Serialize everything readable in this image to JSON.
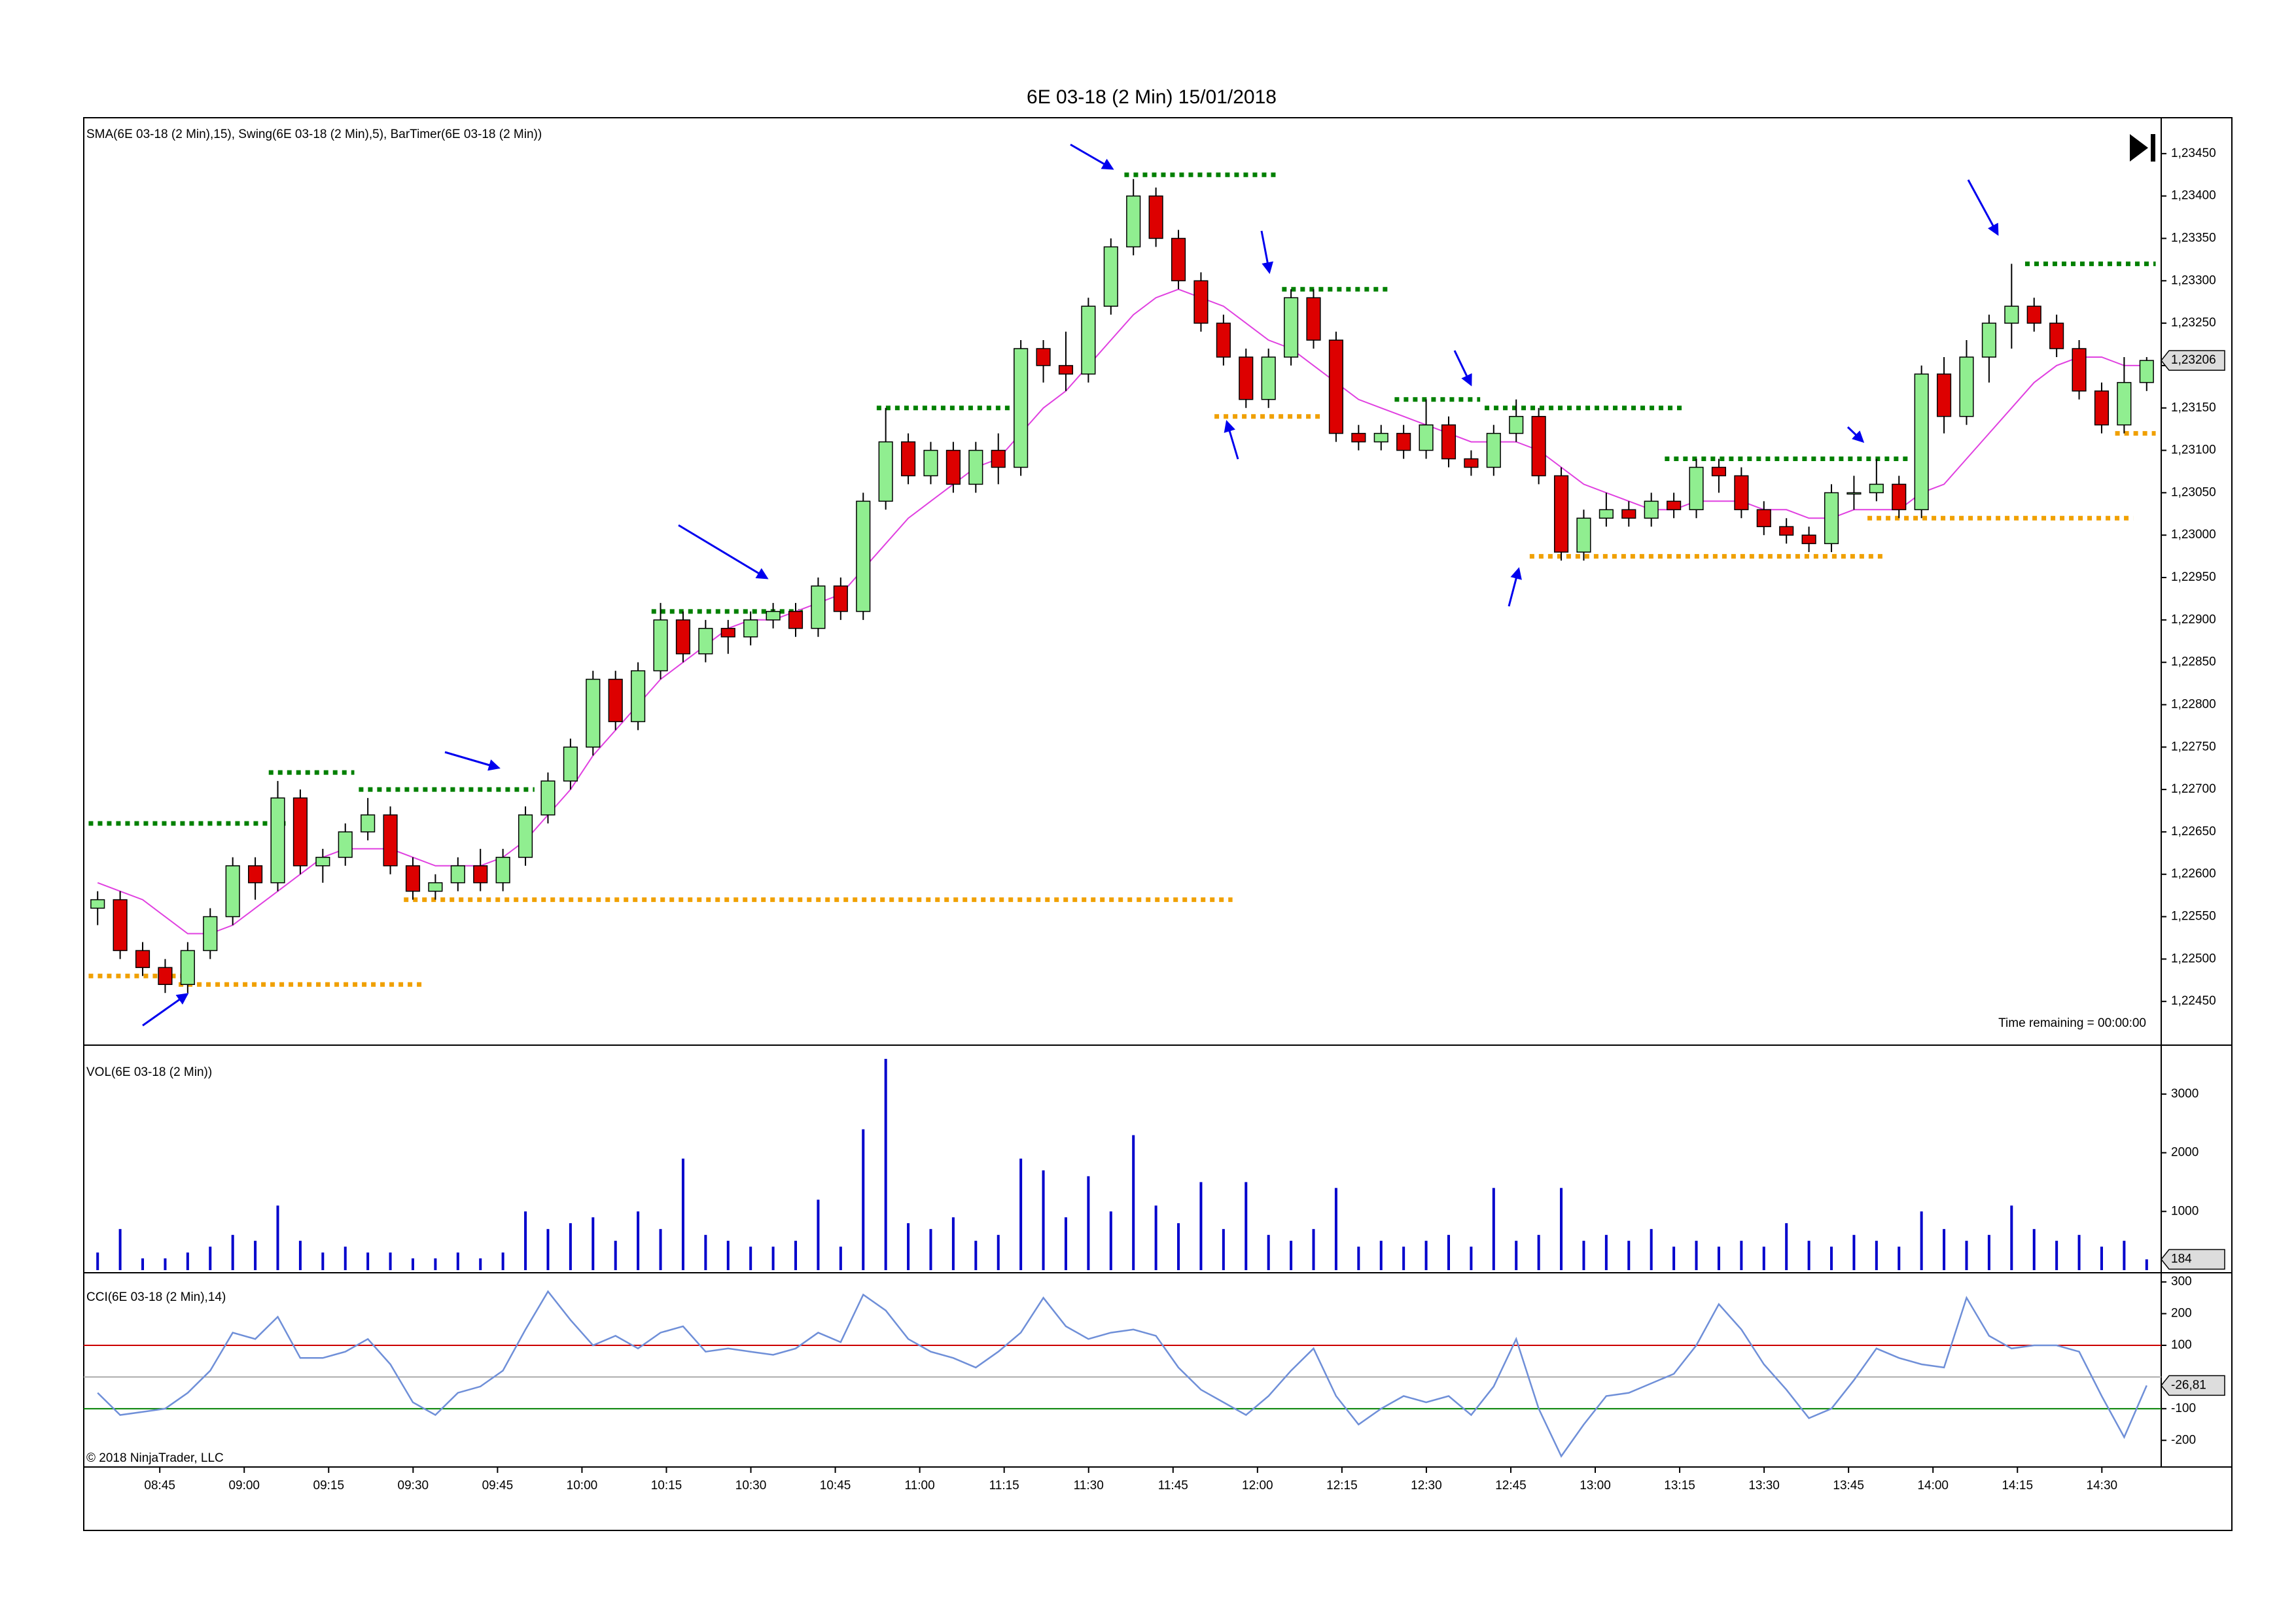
{
  "title": "6E 03-18 (2 Min)  15/01/2018",
  "chart_data": [
    {
      "type": "candlestick",
      "legend_text": "SMA(6E 03-18 (2 Min),15), Swing(6E 03-18 (2 Min),5), BarTimer(6E 03-18 (2 Min))",
      "note": "Time remaining = 00:00:00",
      "up_color": "#90ee90",
      "down_color": "#dd0000",
      "open": [
        1.2256,
        1.2257,
        1.2251,
        1.2249,
        1.2247,
        1.2251,
        1.2255,
        1.2261,
        1.2259,
        1.2269,
        1.2261,
        1.2262,
        1.2265,
        1.2267,
        1.2261,
        1.2258,
        1.2259,
        1.2261,
        1.2259,
        1.2262,
        1.2267,
        1.2271,
        1.2275,
        1.2283,
        1.2278,
        1.2284,
        1.229,
        1.2286,
        1.2289,
        1.2288,
        1.229,
        1.2291,
        1.2289,
        1.2294,
        1.2291,
        1.2304,
        1.2311,
        1.2307,
        1.231,
        1.2306,
        1.231,
        1.2308,
        1.2322,
        1.232,
        1.2319,
        1.2327,
        1.2334,
        1.234,
        1.2335,
        1.233,
        1.2325,
        1.2321,
        1.2316,
        1.2321,
        1.2328,
        1.2323,
        1.2312,
        1.2311,
        1.2312,
        1.231,
        1.2313,
        1.2309,
        1.2308,
        1.2312,
        1.2314,
        1.2307,
        1.2298,
        1.2302,
        1.2303,
        1.2302,
        1.2304,
        1.2303,
        1.2308,
        1.2307,
        1.2303,
        1.2301,
        1.23,
        1.2299,
        1.2305,
        1.2305,
        1.2306,
        1.2303,
        1.2319,
        1.2314,
        1.2321,
        1.2325,
        1.2327,
        1.2325,
        1.2322,
        1.2317,
        1.2313,
        1.2318
      ],
      "high": [
        1.2258,
        1.2258,
        1.2252,
        1.225,
        1.2252,
        1.2256,
        1.2262,
        1.2262,
        1.2271,
        1.227,
        1.2263,
        1.2266,
        1.2269,
        1.2268,
        1.2262,
        1.226,
        1.2262,
        1.2263,
        1.2263,
        1.2268,
        1.2272,
        1.2276,
        1.2284,
        1.2284,
        1.2285,
        1.2292,
        1.2291,
        1.229,
        1.229,
        1.2291,
        1.2292,
        1.2292,
        1.2295,
        1.2295,
        1.2305,
        1.2315,
        1.2312,
        1.2311,
        1.2311,
        1.2311,
        1.2312,
        1.2323,
        1.2323,
        1.2324,
        1.2328,
        1.2335,
        1.2342,
        1.2341,
        1.2336,
        1.2331,
        1.2326,
        1.2322,
        1.2322,
        1.2329,
        1.2329,
        1.2324,
        1.2313,
        1.2313,
        1.2313,
        1.2316,
        1.2314,
        1.231,
        1.2313,
        1.2316,
        1.2315,
        1.2308,
        1.2303,
        1.2305,
        1.2304,
        1.2305,
        1.2305,
        1.2309,
        1.2309,
        1.2308,
        1.2304,
        1.2302,
        1.2301,
        1.2306,
        1.2307,
        1.2309,
        1.2307,
        1.232,
        1.2321,
        1.2323,
        1.2326,
        1.2332,
        1.2328,
        1.2326,
        1.2323,
        1.2318,
        1.2321,
        1.2321
      ],
      "low": [
        1.2254,
        1.225,
        1.2248,
        1.2246,
        1.2246,
        1.225,
        1.2254,
        1.2257,
        1.2258,
        1.226,
        1.2259,
        1.2261,
        1.2264,
        1.226,
        1.2257,
        1.2257,
        1.2258,
        1.2258,
        1.2258,
        1.2261,
        1.2266,
        1.227,
        1.2274,
        1.2277,
        1.2277,
        1.2283,
        1.2285,
        1.2285,
        1.2286,
        1.2287,
        1.2289,
        1.2288,
        1.2288,
        1.229,
        1.229,
        1.2303,
        1.2306,
        1.2306,
        1.2305,
        1.2305,
        1.2306,
        1.2307,
        1.2318,
        1.2317,
        1.2318,
        1.2326,
        1.2333,
        1.2334,
        1.2329,
        1.2324,
        1.232,
        1.2315,
        1.2315,
        1.232,
        1.2322,
        1.2311,
        1.231,
        1.231,
        1.2309,
        1.2309,
        1.2308,
        1.2307,
        1.2307,
        1.2311,
        1.2306,
        1.2297,
        1.2297,
        1.2301,
        1.2301,
        1.2301,
        1.2302,
        1.2302,
        1.2305,
        1.2302,
        1.23,
        1.2299,
        1.2298,
        1.2298,
        1.2303,
        1.2304,
        1.2302,
        1.2302,
        1.2312,
        1.2313,
        1.2318,
        1.2322,
        1.2324,
        1.2321,
        1.2316,
        1.2312,
        1.2312,
        1.2317
      ],
      "close": [
        1.2257,
        1.2251,
        1.2249,
        1.2247,
        1.2251,
        1.2255,
        1.2261,
        1.2259,
        1.2269,
        1.2261,
        1.2262,
        1.2265,
        1.2267,
        1.2261,
        1.2258,
        1.2259,
        1.2261,
        1.2259,
        1.2262,
        1.2267,
        1.2271,
        1.2275,
        1.2283,
        1.2278,
        1.2284,
        1.229,
        1.2286,
        1.2289,
        1.2288,
        1.229,
        1.2291,
        1.2289,
        1.2294,
        1.2291,
        1.2304,
        1.2311,
        1.2307,
        1.231,
        1.2306,
        1.231,
        1.2308,
        1.2322,
        1.232,
        1.2319,
        1.2327,
        1.2334,
        1.234,
        1.2335,
        1.233,
        1.2325,
        1.2321,
        1.2316,
        1.2321,
        1.2328,
        1.2323,
        1.2312,
        1.2311,
        1.2312,
        1.231,
        1.2313,
        1.2309,
        1.2308,
        1.2312,
        1.2314,
        1.2307,
        1.2298,
        1.2302,
        1.2303,
        1.2302,
        1.2304,
        1.2303,
        1.2308,
        1.2307,
        1.2303,
        1.2301,
        1.23,
        1.2299,
        1.2305,
        1.2305,
        1.2306,
        1.2303,
        1.2319,
        1.2314,
        1.2321,
        1.2325,
        1.2327,
        1.2325,
        1.2322,
        1.2317,
        1.2313,
        1.2318,
        1.23206
      ],
      "last_label": "1,23206",
      "sma": {
        "color": "#e040e0",
        "values": [
          1.2259,
          1.2258,
          1.2257,
          1.2255,
          1.2253,
          1.2253,
          1.2254,
          1.2256,
          1.2258,
          1.226,
          1.2262,
          1.2263,
          1.2263,
          1.2263,
          1.2262,
          1.2261,
          1.2261,
          1.2261,
          1.2262,
          1.2264,
          1.2267,
          1.227,
          1.2274,
          1.2277,
          1.228,
          1.2283,
          1.2285,
          1.2287,
          1.2289,
          1.229,
          1.229,
          1.2291,
          1.2292,
          1.2293,
          1.2296,
          1.2299,
          1.2302,
          1.2304,
          1.2306,
          1.2308,
          1.2309,
          1.2312,
          1.2315,
          1.2317,
          1.232,
          1.2323,
          1.2326,
          1.2328,
          1.2329,
          1.2328,
          1.2327,
          1.2325,
          1.2323,
          1.2322,
          1.232,
          1.2318,
          1.2316,
          1.2315,
          1.2314,
          1.2313,
          1.2312,
          1.2311,
          1.2311,
          1.2311,
          1.231,
          1.2308,
          1.2306,
          1.2305,
          1.2304,
          1.2303,
          1.2303,
          1.2304,
          1.2304,
          1.2304,
          1.2303,
          1.2303,
          1.2302,
          1.2302,
          1.2303,
          1.2303,
          1.2303,
          1.2305,
          1.2306,
          1.2309,
          1.2312,
          1.2315,
          1.2318,
          1.232,
          1.2321,
          1.2321,
          1.232,
          1.232
        ]
      },
      "swing_highs": {
        "color": "#008000",
        "lines": [
          {
            "value": 1.2266,
            "from": 0,
            "to": 8
          },
          {
            "value": 1.2272,
            "from": 8,
            "to": 11
          },
          {
            "value": 1.227,
            "from": 12,
            "to": 19
          },
          {
            "value": 1.2291,
            "from": 25,
            "to": 31
          },
          {
            "value": 1.2315,
            "from": 35,
            "to": 41
          },
          {
            "value": 1.23425,
            "from": 46,
            "to": 52
          },
          {
            "value": 1.2329,
            "from": 53,
            "to": 57
          },
          {
            "value": 1.2316,
            "from": 58,
            "to": 61
          },
          {
            "value": 1.2315,
            "from": 62,
            "to": 70
          },
          {
            "value": 1.2309,
            "from": 70,
            "to": 80
          },
          {
            "value": 1.2332,
            "from": 86,
            "to": 91
          }
        ]
      },
      "swing_lows": {
        "color": "#f0a000",
        "lines": [
          {
            "value": 1.2248,
            "from": 0,
            "to": 4
          },
          {
            "value": 1.2247,
            "from": 4,
            "to": 14
          },
          {
            "value": 1.2257,
            "from": 14,
            "to": 50
          },
          {
            "value": 1.2314,
            "from": 50,
            "to": 54
          },
          {
            "value": 1.22975,
            "from": 64,
            "to": 79
          },
          {
            "value": 1.2302,
            "from": 79,
            "to": 90
          },
          {
            "value": 1.2312,
            "from": 90,
            "to": 91
          }
        ]
      },
      "ylim": [
        1.224,
        1.2349
      ],
      "yticks": [
        {
          "value": 1.2245,
          "label": "1,22450"
        },
        {
          "value": 1.225,
          "label": "1,22500"
        },
        {
          "value": 1.2255,
          "label": "1,22550"
        },
        {
          "value": 1.226,
          "label": "1,22600"
        },
        {
          "value": 1.2265,
          "label": "1,22650"
        },
        {
          "value": 1.227,
          "label": "1,22700"
        },
        {
          "value": 1.2275,
          "label": "1,22750"
        },
        {
          "value": 1.228,
          "label": "1,22800"
        },
        {
          "value": 1.2285,
          "label": "1,22850"
        },
        {
          "value": 1.229,
          "label": "1,22900"
        },
        {
          "value": 1.2295,
          "label": "1,22950"
        },
        {
          "value": 1.23,
          "label": "1,23000"
        },
        {
          "value": 1.2305,
          "label": "1,23050"
        },
        {
          "value": 1.231,
          "label": "1,23100"
        },
        {
          "value": 1.2315,
          "label": "1,23150"
        },
        {
          "value": 1.232,
          "label": "1,23200"
        },
        {
          "value": 1.2325,
          "label": "1,23250"
        },
        {
          "value": 1.233,
          "label": "1,23300"
        },
        {
          "value": 1.2335,
          "label": "1,23350"
        },
        {
          "value": 1.234,
          "label": "1,23400"
        },
        {
          "value": 1.2345,
          "label": "1,23450"
        }
      ]
    },
    {
      "type": "bar",
      "label": "VOL(6E 03-18 (2 Min))",
      "color": "#0000cc",
      "values": [
        300,
        700,
        200,
        200,
        300,
        400,
        600,
        500,
        1100,
        500,
        300,
        400,
        300,
        300,
        200,
        200,
        300,
        200,
        300,
        1000,
        700,
        800,
        900,
        500,
        1000,
        700,
        1900,
        600,
        500,
        400,
        400,
        500,
        1200,
        400,
        2400,
        3600,
        800,
        700,
        900,
        500,
        600,
        1900,
        1700,
        900,
        1600,
        1000,
        2300,
        1100,
        800,
        1500,
        700,
        1500,
        600,
        500,
        700,
        1400,
        400,
        500,
        400,
        500,
        600,
        400,
        1400,
        500,
        600,
        1400,
        500,
        600,
        500,
        700,
        400,
        500,
        400,
        500,
        400,
        800,
        500,
        400,
        600,
        500,
        400,
        1000,
        700,
        500,
        600,
        1100,
        700,
        500,
        600,
        400,
        500,
        184
      ],
      "ylim": [
        0,
        3700
      ],
      "yticks": [
        1000,
        2000,
        3000
      ]
    },
    {
      "type": "line",
      "label": "CCI(6E 03-18 (2 Min),14)",
      "color": "#6f8fd8",
      "copyright": "© 2018 NinjaTrader, LLC",
      "values": [
        -50,
        -120,
        -110,
        -100,
        -50,
        20,
        140,
        120,
        190,
        60,
        60,
        80,
        120,
        40,
        -80,
        -120,
        -50,
        -30,
        20,
        150,
        270,
        180,
        100,
        130,
        90,
        140,
        160,
        80,
        90,
        80,
        70,
        90,
        140,
        110,
        260,
        210,
        120,
        80,
        60,
        30,
        80,
        140,
        250,
        160,
        120,
        140,
        150,
        130,
        30,
        -40,
        -80,
        -120,
        -60,
        20,
        90,
        -60,
        -150,
        -100,
        -60,
        -80,
        -60,
        -120,
        -30,
        120,
        -100,
        -250,
        -150,
        -60,
        -50,
        -20,
        10,
        100,
        230,
        150,
        40,
        -40,
        -130,
        -100,
        -10,
        90,
        60,
        40,
        30,
        250,
        130,
        90,
        100,
        100,
        80,
        -60,
        -190,
        -26.81
      ],
      "last_label": "-26,81",
      "levels": [
        {
          "value": 100,
          "color": "#cc0000"
        },
        {
          "value": 0,
          "color": "#aaaaaa"
        },
        {
          "value": -100,
          "color": "#008000"
        }
      ],
      "ylim": [
        -280,
        325
      ],
      "yticks": [
        -200,
        -100,
        100,
        200,
        300
      ],
      "xlim": [
        -0.5,
        91.5
      ],
      "xticks": [
        {
          "value": 2.76,
          "label": "08:45"
        },
        {
          "value": 6.51,
          "label": "09:00"
        },
        {
          "value": 10.26,
          "label": "09:15"
        },
        {
          "value": 14.01,
          "label": "09:30"
        },
        {
          "value": 17.76,
          "label": "09:45"
        },
        {
          "value": 21.51,
          "label": "10:00"
        },
        {
          "value": 25.26,
          "label": "10:15"
        },
        {
          "value": 29.01,
          "label": "10:30"
        },
        {
          "value": 32.76,
          "label": "10:45"
        },
        {
          "value": 36.51,
          "label": "11:00"
        },
        {
          "value": 40.26,
          "label": "11:15"
        },
        {
          "value": 44.01,
          "label": "11:30"
        },
        {
          "value": 47.76,
          "label": "11:45"
        },
        {
          "value": 51.51,
          "label": "12:00"
        },
        {
          "value": 55.26,
          "label": "12:15"
        },
        {
          "value": 59.01,
          "label": "12:30"
        },
        {
          "value": 62.76,
          "label": "12:45"
        },
        {
          "value": 66.51,
          "label": "13:00"
        },
        {
          "value": 70.26,
          "label": "13:15"
        },
        {
          "value": 74.01,
          "label": "13:30"
        },
        {
          "value": 77.76,
          "label": "13:45"
        },
        {
          "value": 81.51,
          "label": "14:00"
        },
        {
          "value": 85.26,
          "label": "14:15"
        },
        {
          "value": 89.01,
          "label": "14:30"
        }
      ]
    }
  ]
}
